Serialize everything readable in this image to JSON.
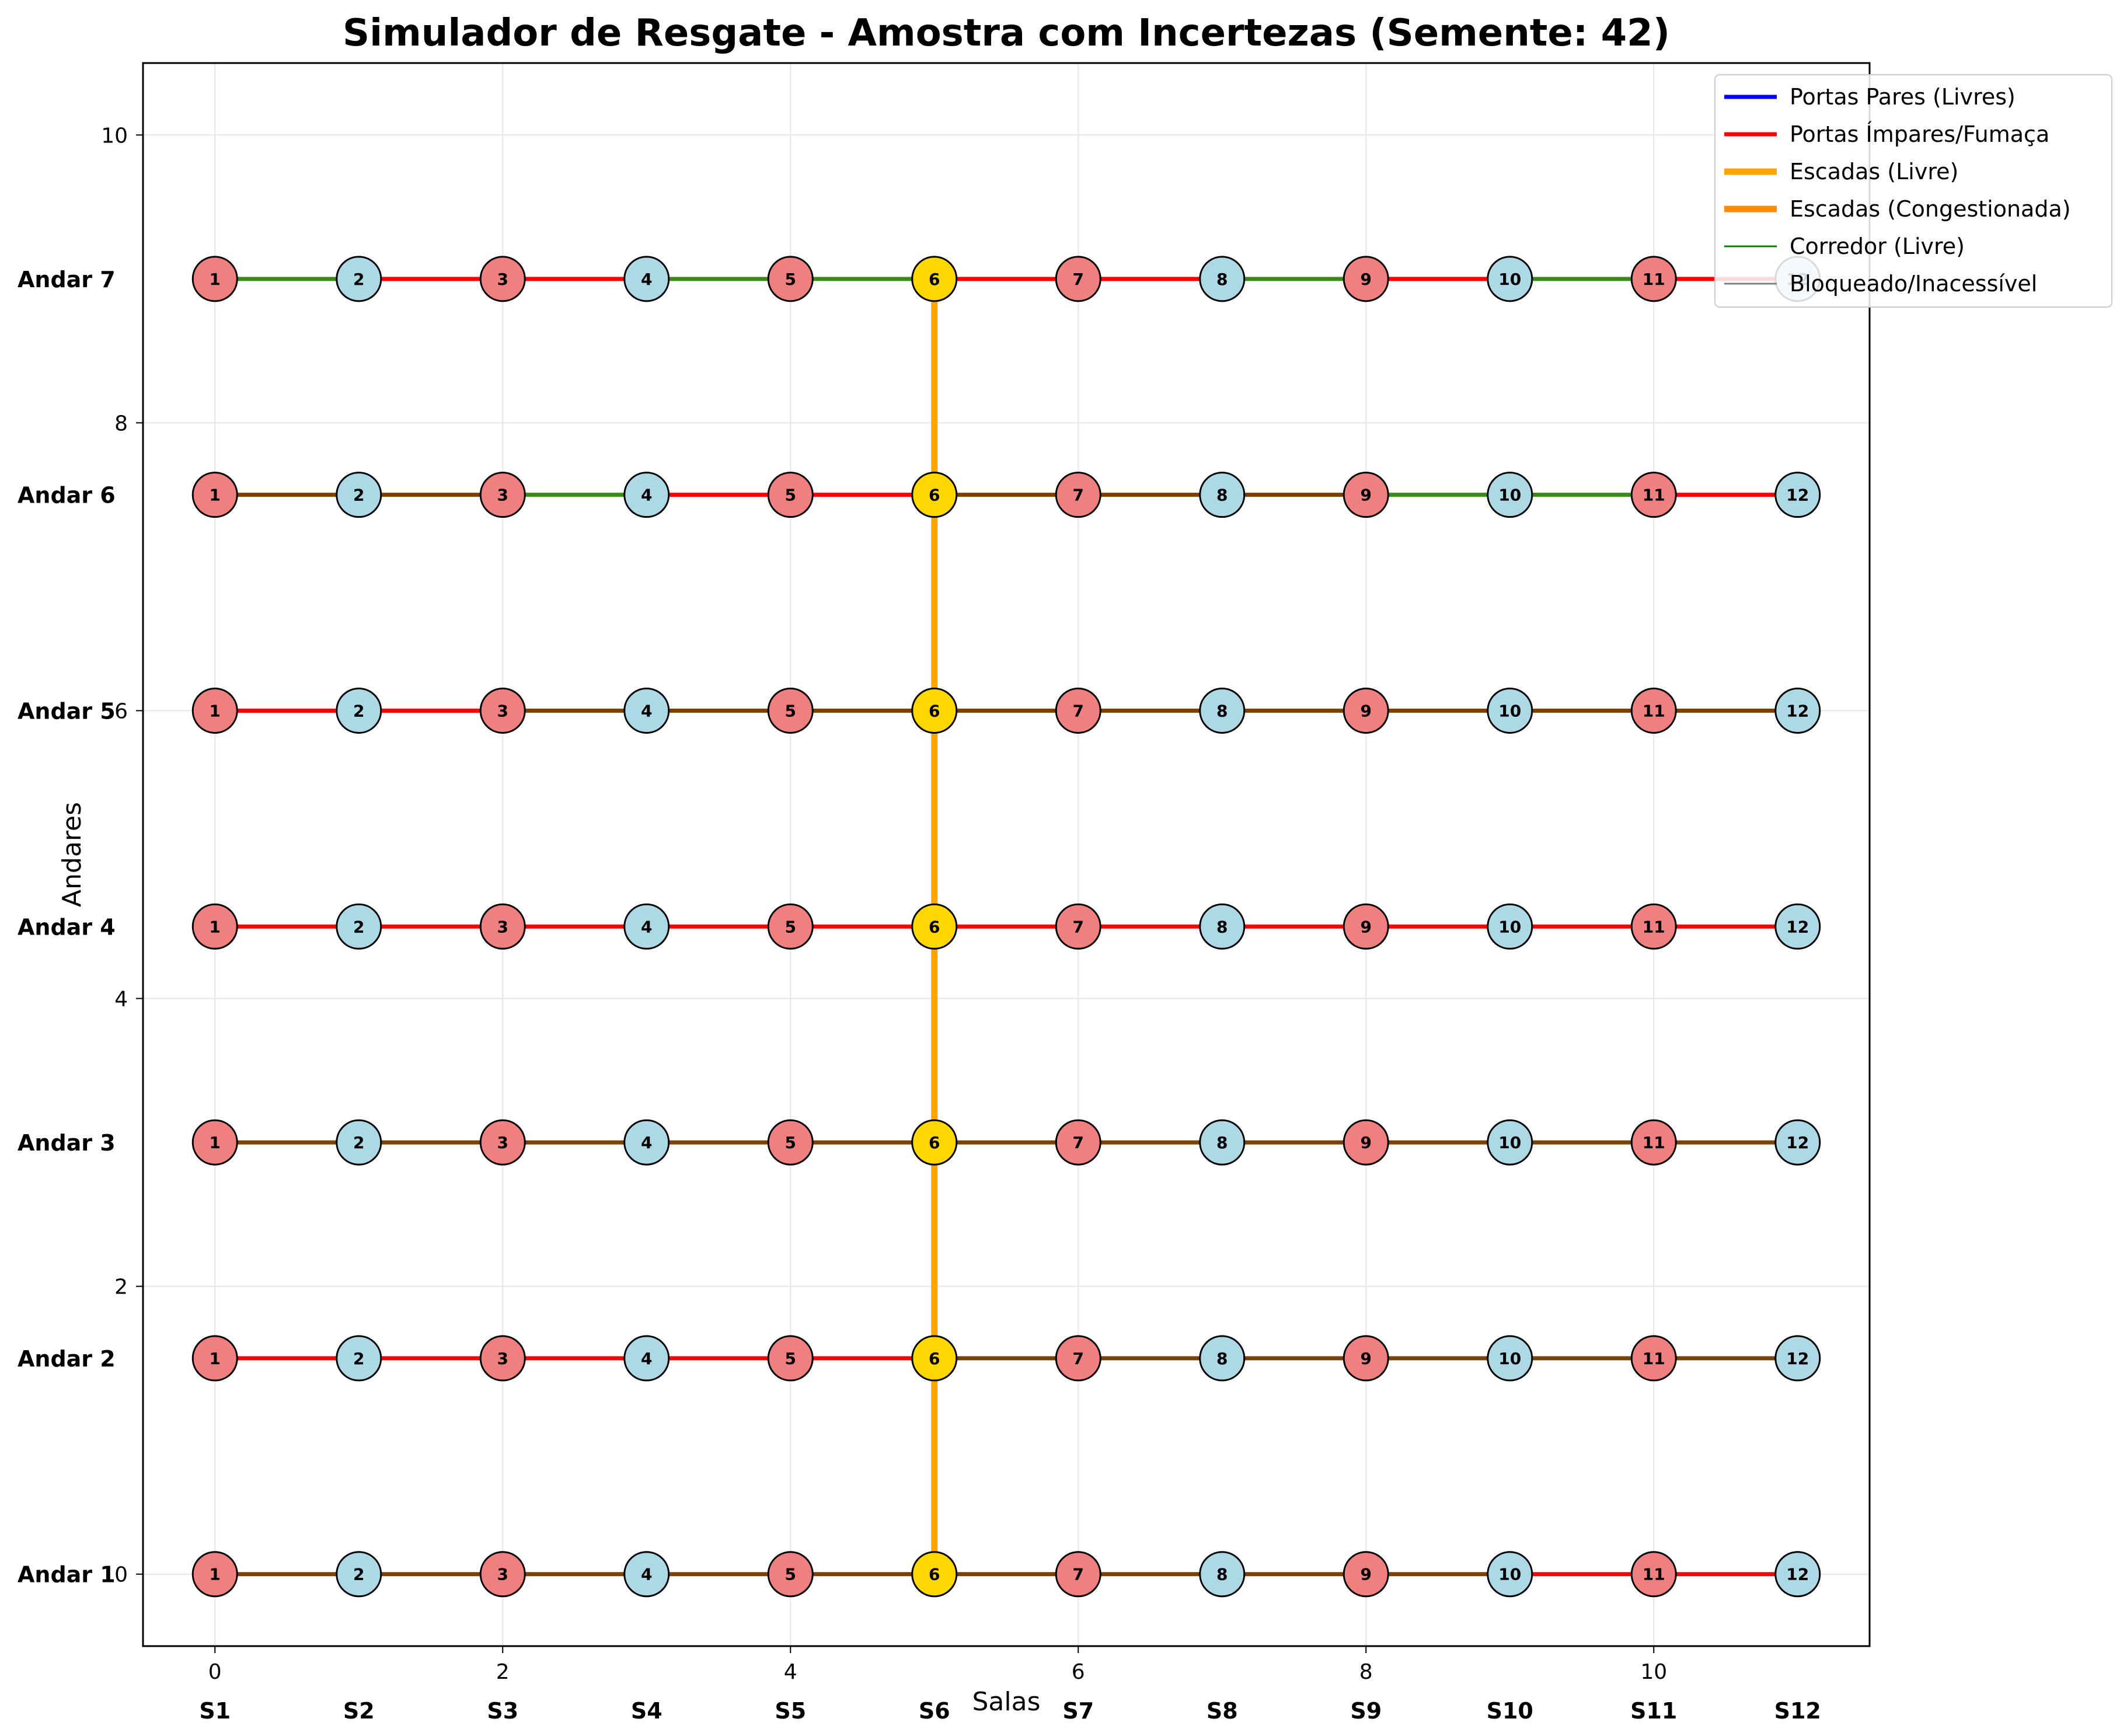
{
  "chart_data": {
    "type": "network",
    "title": "Simulador de Resgate - Amostra com Incertezas (Semente: 42)",
    "xlabel": "Salas",
    "ylabel": "Andares",
    "xlim": [
      -0.5,
      11.5
    ],
    "ylim": [
      -0.5,
      10.5
    ],
    "x_ticks": [
      0,
      2,
      4,
      6,
      8,
      10
    ],
    "y_ticks": [
      0,
      2,
      4,
      6,
      8,
      10
    ],
    "grid": true,
    "room_labels": [
      "S1",
      "S2",
      "S3",
      "S4",
      "S5",
      "S6",
      "S7",
      "S8",
      "S9",
      "S10",
      "S11",
      "S12"
    ],
    "floors": [
      {
        "label": "Andar 1",
        "y": 0.0
      },
      {
        "label": "Andar 2",
        "y": 1.5
      },
      {
        "label": "Andar 3",
        "y": 3.0
      },
      {
        "label": "Andar 4",
        "y": 4.5
      },
      {
        "label": "Andar 5",
        "y": 6.0
      },
      {
        "label": "Andar 6",
        "y": 7.5
      },
      {
        "label": "Andar 7",
        "y": 9.0
      }
    ],
    "stair_room_index": 5,
    "node_colors": {
      "odd": "#f08080",
      "even": "#add8e6",
      "stair": "#ffd700"
    },
    "edge_colors": {
      "red": "#ff0000",
      "brown": "#7a4100",
      "green": "#3a8a1a",
      "stair": "#ffa500"
    },
    "floor_edges": [
      [
        "brown",
        "brown",
        "brown",
        "brown",
        "brown",
        "brown",
        "brown",
        "brown",
        "brown",
        "red",
        "red"
      ],
      [
        "red",
        "red",
        "red",
        "red",
        "red",
        "brown",
        "brown",
        "brown",
        "brown",
        "brown",
        "brown"
      ],
      [
        "brown",
        "brown",
        "brown",
        "brown",
        "brown",
        "brown",
        "brown",
        "brown",
        "brown",
        "brown",
        "brown"
      ],
      [
        "red",
        "red",
        "red",
        "red",
        "red",
        "red",
        "red",
        "red",
        "red",
        "red",
        "red"
      ],
      [
        "red",
        "red",
        "brown",
        "brown",
        "brown",
        "brown",
        "brown",
        "brown",
        "brown",
        "brown",
        "brown"
      ],
      [
        "brown",
        "brown",
        "green",
        "red",
        "red",
        "brown",
        "brown",
        "brown",
        "green",
        "green",
        "red"
      ],
      [
        "green",
        "red",
        "red",
        "green",
        "green",
        "red",
        "red",
        "green",
        "red",
        "green",
        "red"
      ]
    ],
    "legend": {
      "position": "top-right",
      "entries": [
        {
          "label": "Portas Pares (Livres)",
          "color": "#0000ff",
          "width": "medium"
        },
        {
          "label": "Portas Ímpares/Fumaça",
          "color": "#ff0000",
          "width": "medium"
        },
        {
          "label": "Escadas (Livre)",
          "color": "#ffa500",
          "width": "thick"
        },
        {
          "label": "Escadas (Congestionada)",
          "color": "#ff8c00",
          "width": "thick"
        },
        {
          "label": "Corredor (Livre)",
          "color": "#008000",
          "width": "thin"
        },
        {
          "label": "Bloqueado/Inacessível",
          "color": "#808080",
          "width": "thin"
        }
      ]
    }
  }
}
